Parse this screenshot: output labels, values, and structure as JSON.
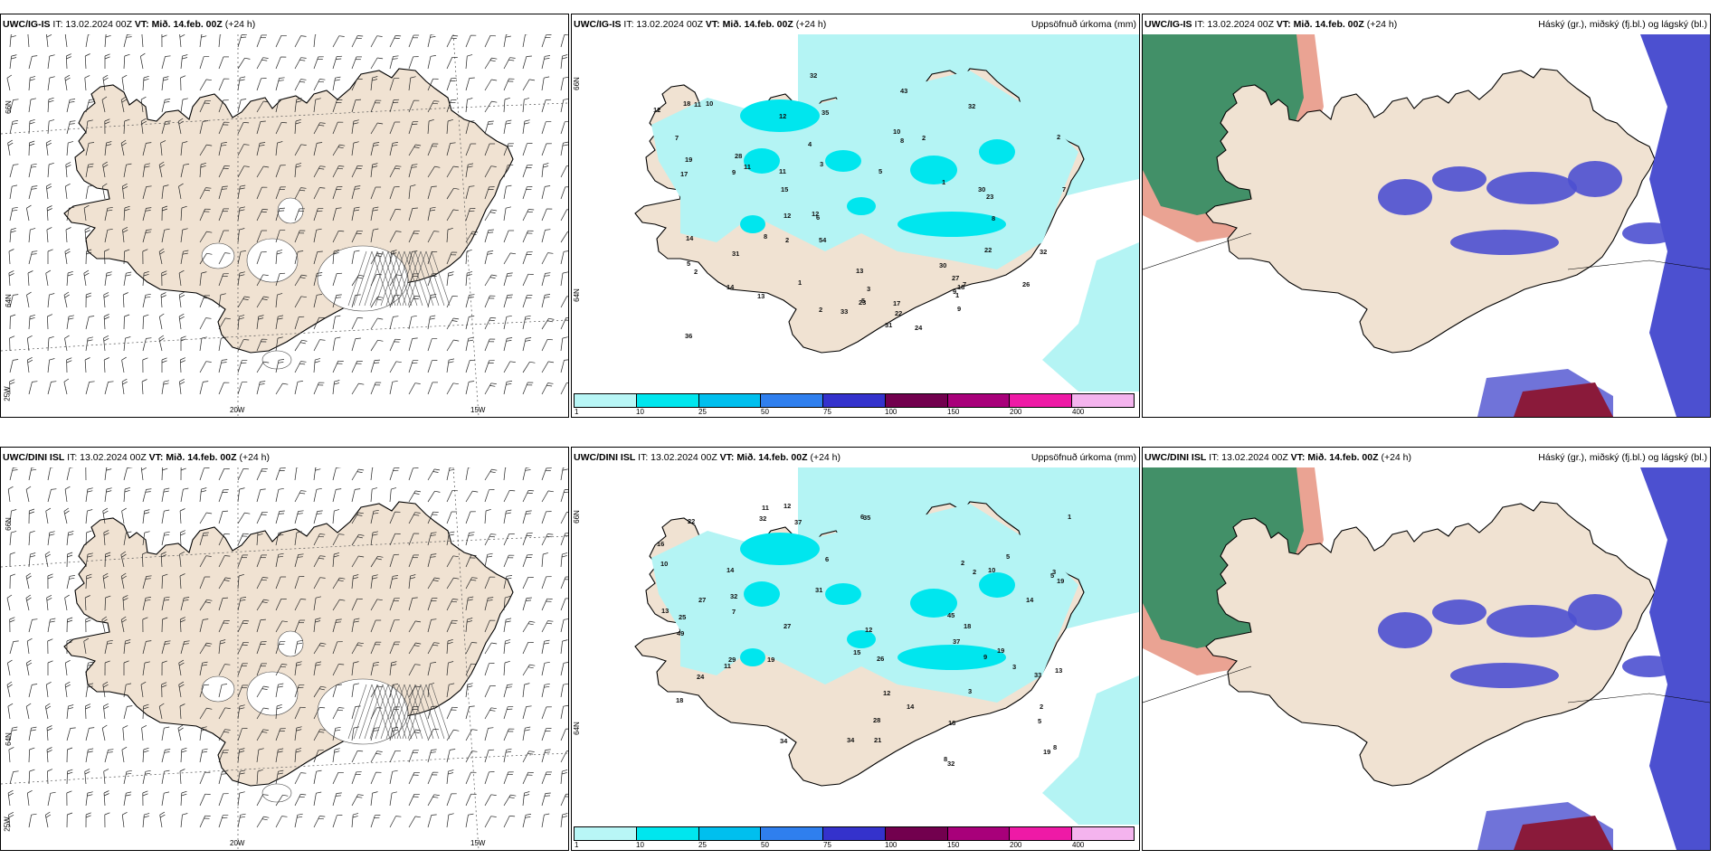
{
  "rows": [
    {
      "wind": {
        "model": "UWC/IG-IS",
        "it": "IT: 13.02.2024 00Z",
        "vt_label": "VT:",
        "vt": "Mið. 14.feb. 00Z",
        "lead": "(+24 h)",
        "lat_labels": [
          "66N",
          "64N",
          "25W"
        ],
        "lon_labels": [
          "20W",
          "15W"
        ]
      },
      "precip": {
        "model": "UWC/IG-IS",
        "it": "IT: 13.02.2024 00Z",
        "vt_label": "VT:",
        "vt": "Mið. 14.feb. 00Z",
        "lead": "(+24 h)",
        "title": "Uppsöfnuð úrkoma (mm)",
        "lat_labels": [
          "66N",
          "64N"
        ],
        "values": [
          "2",
          "3",
          "5",
          "12",
          "7",
          "2",
          "5",
          "14",
          "30",
          "28",
          "31",
          "26",
          "33",
          "24",
          "32",
          "22",
          "27",
          "18",
          "32",
          "23",
          "10",
          "8",
          "9",
          "15",
          "17",
          "13",
          "43",
          "31",
          "12",
          "11",
          "18",
          "30",
          "22",
          "13",
          "9",
          "4",
          "11",
          "7",
          "6",
          "8",
          "36",
          "14",
          "12",
          "5",
          "17",
          "10",
          "19",
          "54",
          "32",
          "35",
          "23",
          "7",
          "12",
          "1",
          "2",
          "1",
          "2",
          "3",
          "2",
          "1",
          "9",
          "8",
          "11"
        ]
      },
      "cloud": {
        "model": "UWC/IG-IS",
        "it": "IT: 13.02.2024 00Z",
        "vt_label": "VT:",
        "vt": "Mið. 14.feb. 00Z",
        "lead": "(+24 h)",
        "title": "Háský (gr.), miðský (fj.bl.) og lágský (bl.)"
      }
    },
    {
      "wind": {
        "model": "UWC/DINI ISL",
        "it": "IT: 13.02.2024 00Z",
        "vt_label": "VT:",
        "vt": "Mið. 14.feb. 00Z",
        "lead": "(+24 h)",
        "lat_labels": [
          "66N",
          "64N",
          "25W"
        ],
        "lon_labels": [
          "20W",
          "15W"
        ]
      },
      "precip": {
        "model": "UWC/DINI ISL",
        "it": "IT: 13.02.2024 00Z",
        "vt_label": "VT:",
        "vt": "Mið. 14.feb. 00Z",
        "lead": "(+24 h)",
        "title": "Uppsöfnuð úrkoma (mm)",
        "lat_labels": [
          "66N",
          "64N"
        ],
        "values": [
          "2",
          "3",
          "5",
          "14",
          "6",
          "8",
          "19",
          "29",
          "26",
          "34",
          "35",
          "45",
          "18",
          "32",
          "28",
          "27",
          "24",
          "37",
          "19",
          "25",
          "15",
          "12",
          "33",
          "19",
          "32",
          "13",
          "49",
          "34",
          "12",
          "11",
          "7",
          "10",
          "5",
          "14",
          "37",
          "18",
          "14",
          "8",
          "9",
          "10",
          "18",
          "21",
          "22",
          "31",
          "32",
          "19",
          "11",
          "27",
          "12",
          "16",
          "13",
          "5",
          "1",
          "2",
          "3",
          "6",
          "2",
          "3"
        ]
      },
      "cloud": {
        "model": "UWC/DINI ISL",
        "it": "IT: 13.02.2024 00Z",
        "vt_label": "VT:",
        "vt": "Mið. 14.feb. 00Z",
        "lead": "(+24 h)",
        "title": "Háský (gr.), miðský (fj.bl.) og lágský (bl.)"
      }
    }
  ],
  "legend": {
    "ticks": [
      "1",
      "10",
      "25",
      "50",
      "75",
      "100",
      "150",
      "200",
      "400"
    ],
    "colors": [
      "#b8f6f6",
      "#00e6ee",
      "#00bfee",
      "#2f7fee",
      "#3432cc",
      "#72004e",
      "#a8007a",
      "#ee1aa6",
      "#f4b4ee"
    ]
  },
  "colors": {
    "land": "#f0e2d2",
    "precip_light": "#b4f4f4",
    "precip_mid": "#00e6ee",
    "low_cloud": "#4c50d0",
    "high_cloud": "#0a8a5a",
    "mid_cloud": "#d9583a"
  }
}
